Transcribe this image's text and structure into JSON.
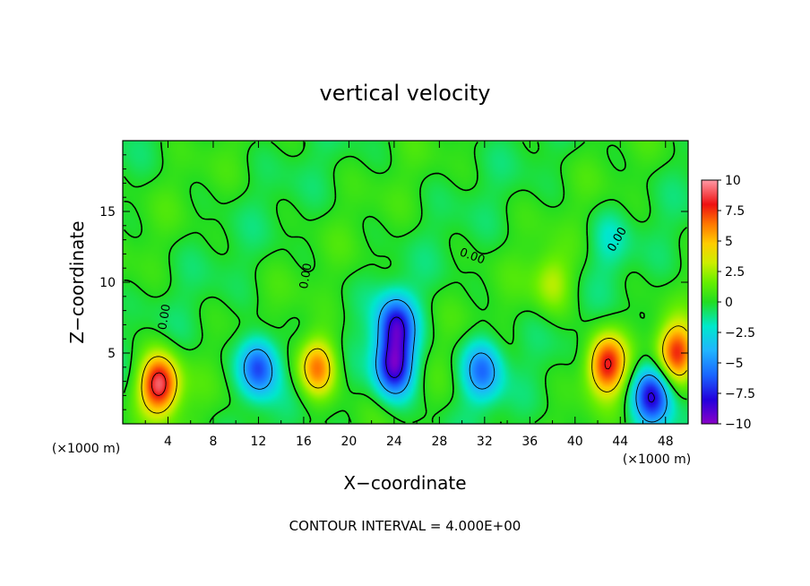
{
  "chart_data": {
    "type": "heatmap",
    "title": "vertical velocity",
    "xlabel": "X−coordinate",
    "ylabel": "Z−coordinate",
    "x_unit_left": "(×1000 m)",
    "x_unit_right": "(×1000 m)",
    "footer": "CONTOUR INTERVAL = 4.000E+00",
    "xlim": [
      0,
      50
    ],
    "ylim": [
      0,
      20
    ],
    "x_ticks": [
      4,
      8,
      12,
      16,
      20,
      24,
      28,
      32,
      36,
      40,
      44,
      48
    ],
    "y_ticks": [
      5,
      10,
      15
    ],
    "contour_label": "0.00",
    "colorbar": {
      "range": [
        -10,
        10
      ],
      "tick_values": [
        10,
        7.5,
        5,
        2.5,
        0,
        -2.5,
        -5,
        -7.5,
        -10
      ],
      "tick_labels": [
        "10",
        "7.5",
        "5",
        "2.5",
        "0",
        "−2.5",
        "−5",
        "−7.5",
        "−10"
      ]
    },
    "features": [
      {
        "x": 3.2,
        "z": 2.8,
        "value": 9.5
      },
      {
        "x": 12.0,
        "z": 4.0,
        "value": -7.0
      },
      {
        "x": 17.2,
        "z": 4.0,
        "value": 6.5
      },
      {
        "x": 24.2,
        "z": 7.0,
        "value": -7.5
      },
      {
        "x": 24.0,
        "z": 4.0,
        "value": -9.0
      },
      {
        "x": 31.8,
        "z": 3.8,
        "value": -5.5
      },
      {
        "x": 38.0,
        "z": 10.0,
        "value": 3.0
      },
      {
        "x": 42.8,
        "z": 4.2,
        "value": 8.0
      },
      {
        "x": 46.8,
        "z": 2.0,
        "value": -8.0
      },
      {
        "x": 49.0,
        "z": 5.0,
        "value": 7.5
      },
      {
        "x": 43.0,
        "z": 13.0,
        "value": -1.5
      }
    ]
  }
}
